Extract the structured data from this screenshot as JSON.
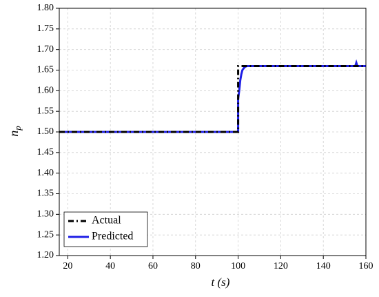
{
  "chart_data": {
    "type": "line",
    "xlabel": "t (s)",
    "ylabel": "n",
    "ylabel_sub": "p",
    "xlim": [
      16,
      160
    ],
    "ylim": [
      1.2,
      1.8
    ],
    "xticks": [
      20,
      40,
      60,
      80,
      100,
      120,
      140,
      160
    ],
    "yticks": [
      {
        "value": 1.2,
        "label": "1.20"
      },
      {
        "value": 1.25,
        "label": "1.25"
      },
      {
        "value": 1.3,
        "label": "1.30"
      },
      {
        "value": 1.35,
        "label": "1.35"
      },
      {
        "value": 1.4,
        "label": "1.40"
      },
      {
        "value": 1.45,
        "label": "1.45"
      },
      {
        "value": 1.5,
        "label": "1.50"
      },
      {
        "value": 1.55,
        "label": "1.55"
      },
      {
        "value": 1.6,
        "label": "1.60"
      },
      {
        "value": 1.65,
        "label": "1.65"
      },
      {
        "value": 1.7,
        "label": "1.70"
      },
      {
        "value": 1.75,
        "label": "1.75"
      },
      {
        "value": 1.8,
        "label": "1.80"
      }
    ],
    "grid": true,
    "legend": "lower-left",
    "series": [
      {
        "name": "Actual",
        "color": "#000000",
        "style": "dash-dot",
        "x": [
          16,
          100,
          100,
          160
        ],
        "values": [
          1.5,
          1.5,
          1.66,
          1.66
        ]
      },
      {
        "name": "Predicted",
        "color": "#1f1fe6",
        "style": "solid",
        "x": [
          16,
          100,
          100,
          100.5,
          101,
          101.5,
          102,
          103,
          104,
          155,
          155.5,
          156,
          160
        ],
        "values": [
          1.5,
          1.5,
          1.58,
          1.6,
          1.625,
          1.64,
          1.65,
          1.657,
          1.66,
          1.66,
          1.668,
          1.66,
          1.66
        ]
      }
    ]
  }
}
